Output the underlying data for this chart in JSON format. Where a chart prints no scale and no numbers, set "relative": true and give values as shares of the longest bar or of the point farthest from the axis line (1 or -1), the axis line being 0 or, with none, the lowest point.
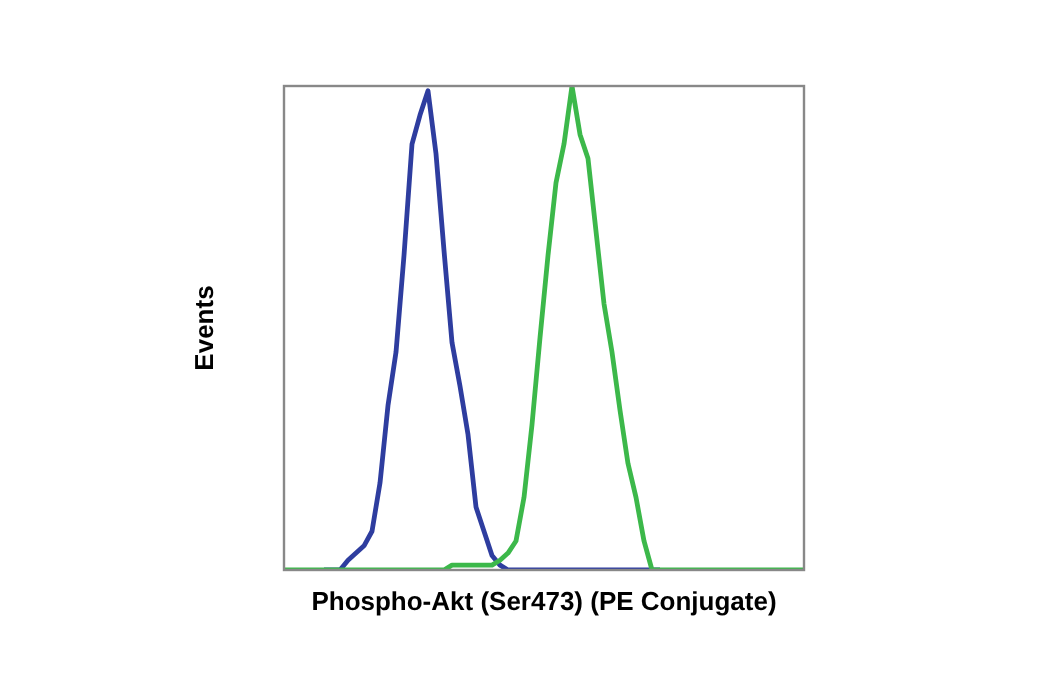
{
  "chart_data": {
    "type": "line",
    "relative": true,
    "xlabel": "Phospho-Akt (Ser473) (PE Conjugate)",
    "ylabel": "Events",
    "grid": false,
    "legend": false,
    "marker": "none",
    "line_style": "solid",
    "categories": [
      null,
      null,
      null,
      null,
      null,
      null,
      null,
      null,
      null,
      null,
      null,
      null,
      null,
      null,
      null,
      null,
      null,
      null,
      null,
      null,
      null,
      null,
      null,
      null,
      null,
      null,
      null,
      null,
      null,
      null,
      null,
      null,
      null,
      null,
      null,
      null,
      null,
      null,
      null,
      null,
      null,
      null,
      null,
      null,
      null,
      null,
      null,
      null,
      null,
      null,
      null,
      null,
      null,
      null,
      null,
      null,
      null,
      null,
      null,
      null,
      null,
      null,
      null,
      null,
      null,
      null
    ],
    "series": [
      {
        "color": "#2e3d9f",
        "values": [
          null,
          null,
          null,
          null,
          null,
          0,
          0,
          0,
          0.02,
          0.035,
          0.05,
          0.08,
          0.18,
          0.34,
          0.45,
          0.65,
          0.88,
          0.94,
          0.99,
          0.86,
          0.66,
          0.47,
          0.38,
          0.28,
          0.13,
          0.08,
          0.03,
          0.01,
          0,
          0,
          0,
          0,
          0,
          0,
          0,
          0,
          0,
          0,
          0,
          0,
          0,
          0,
          0,
          0,
          0,
          0,
          0,
          0,
          null,
          null,
          null,
          null,
          null,
          null,
          null,
          null,
          null,
          null,
          null,
          null,
          null,
          null,
          null,
          null,
          null,
          null
        ]
      },
      {
        "color": "#3cb84a",
        "values": [
          0,
          0,
          0,
          0,
          0,
          0,
          0,
          0,
          0,
          0,
          0,
          0,
          0,
          0,
          0,
          0,
          0,
          0,
          0,
          0,
          0,
          0.01,
          0.01,
          0.01,
          0.01,
          0.01,
          0.01,
          0.02,
          0.035,
          0.06,
          0.15,
          0.3,
          0.48,
          0.65,
          0.8,
          0.88,
          1,
          0.9,
          0.85,
          0.7,
          0.55,
          0.45,
          0.33,
          0.22,
          0.15,
          0.06,
          0,
          0,
          0,
          0,
          0,
          0,
          0,
          0,
          0,
          0,
          0,
          0,
          0,
          0,
          0,
          0,
          0,
          0,
          0,
          0
        ]
      }
    ]
  }
}
